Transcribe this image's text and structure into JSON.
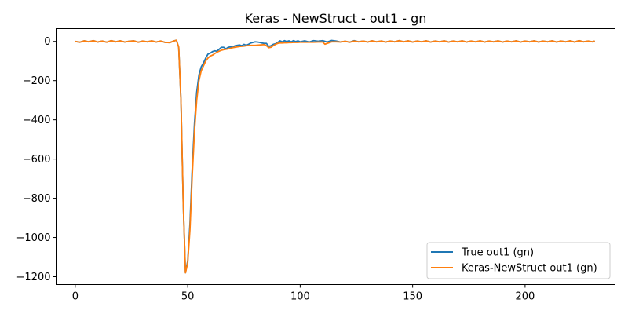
{
  "chart_data": {
    "type": "line",
    "title": "Keras - NewStruct - out1 - gn",
    "xlabel": "",
    "ylabel": "",
    "xlim": [
      -8.5,
      240
    ],
    "ylim": [
      -1240,
      65
    ],
    "xticks": [
      0,
      50,
      100,
      150,
      200
    ],
    "yticks": [
      0,
      -200,
      -400,
      -600,
      -800,
      -1000,
      -1200
    ],
    "xtick_labels": [
      "0",
      "50",
      "100",
      "150",
      "200"
    ],
    "ytick_labels": [
      "0",
      "−200",
      "−400",
      "−600",
      "−800",
      "−1000",
      "−1200"
    ],
    "grid": false,
    "legend_position": "lower-right",
    "series": [
      {
        "name": "True out1 (gn)",
        "color": "#1f77b4",
        "points": [
          [
            0,
            0
          ],
          [
            2,
            -4
          ],
          [
            4,
            3
          ],
          [
            6,
            -2
          ],
          [
            8,
            4
          ],
          [
            10,
            -3
          ],
          [
            12,
            2
          ],
          [
            14,
            -4
          ],
          [
            16,
            4
          ],
          [
            18,
            -2
          ],
          [
            20,
            3
          ],
          [
            22,
            -3
          ],
          [
            24,
            1
          ],
          [
            26,
            3
          ],
          [
            28,
            -4
          ],
          [
            30,
            2
          ],
          [
            32,
            -2
          ],
          [
            34,
            3
          ],
          [
            36,
            -3
          ],
          [
            38,
            2
          ],
          [
            40,
            -5
          ],
          [
            42,
            -6
          ],
          [
            44,
            3
          ],
          [
            45,
            6
          ],
          [
            46,
            -30
          ],
          [
            47,
            -300
          ],
          [
            48,
            -820
          ],
          [
            49,
            -1180
          ],
          [
            50,
            -1120
          ],
          [
            51,
            -930
          ],
          [
            52,
            -650
          ],
          [
            53,
            -420
          ],
          [
            54,
            -260
          ],
          [
            55,
            -170
          ],
          [
            56,
            -130
          ],
          [
            57,
            -110
          ],
          [
            58,
            -85
          ],
          [
            59,
            -65
          ],
          [
            60,
            -60
          ],
          [
            61,
            -52
          ],
          [
            62,
            -48
          ],
          [
            63,
            -50
          ],
          [
            64,
            -40
          ],
          [
            65,
            -30
          ],
          [
            66,
            -30
          ],
          [
            67,
            -38
          ],
          [
            68,
            -30
          ],
          [
            69,
            -28
          ],
          [
            70,
            -30
          ],
          [
            71,
            -22
          ],
          [
            72,
            -20
          ],
          [
            73,
            -18
          ],
          [
            74,
            -22
          ],
          [
            75,
            -15
          ],
          [
            76,
            -20
          ],
          [
            77,
            -15
          ],
          [
            78,
            -8
          ],
          [
            79,
            -5
          ],
          [
            80,
            -2
          ],
          [
            81,
            -3
          ],
          [
            82,
            -5
          ],
          [
            83,
            -8
          ],
          [
            84,
            -10
          ],
          [
            85,
            -10
          ],
          [
            86,
            -25
          ],
          [
            87,
            -22
          ],
          [
            88,
            -15
          ],
          [
            89,
            -12
          ],
          [
            90,
            -5
          ],
          [
            91,
            3
          ],
          [
            92,
            -2
          ],
          [
            93,
            4
          ],
          [
            94,
            -1
          ],
          [
            95,
            3
          ],
          [
            96,
            -2
          ],
          [
            97,
            4
          ],
          [
            98,
            -1
          ],
          [
            99,
            3
          ],
          [
            100,
            -2
          ],
          [
            102,
            3
          ],
          [
            104,
            -3
          ],
          [
            106,
            4
          ],
          [
            108,
            1
          ],
          [
            110,
            4
          ],
          [
            112,
            -3
          ],
          [
            114,
            5
          ],
          [
            116,
            2
          ],
          [
            118,
            -3
          ],
          [
            120,
            1
          ],
          [
            122,
            -4
          ],
          [
            124,
            4
          ],
          [
            126,
            -2
          ],
          [
            128,
            2
          ],
          [
            130,
            -3
          ],
          [
            132,
            3
          ],
          [
            134,
            -2
          ],
          [
            136,
            2
          ],
          [
            138,
            -3
          ],
          [
            140,
            2
          ],
          [
            142,
            -2
          ],
          [
            144,
            4
          ],
          [
            146,
            -2
          ],
          [
            148,
            3
          ],
          [
            150,
            -3
          ],
          [
            152,
            2
          ],
          [
            154,
            -2
          ],
          [
            156,
            3
          ],
          [
            158,
            -3
          ],
          [
            160,
            2
          ],
          [
            162,
            -2
          ],
          [
            164,
            3
          ],
          [
            166,
            -3
          ],
          [
            168,
            2
          ],
          [
            170,
            -2
          ],
          [
            172,
            3
          ],
          [
            174,
            -3
          ],
          [
            176,
            2
          ],
          [
            178,
            -2
          ],
          [
            180,
            3
          ],
          [
            182,
            -3
          ],
          [
            184,
            2
          ],
          [
            186,
            -2
          ],
          [
            188,
            3
          ],
          [
            190,
            -3
          ],
          [
            192,
            2
          ],
          [
            194,
            -2
          ],
          [
            196,
            3
          ],
          [
            198,
            -3
          ],
          [
            200,
            2
          ],
          [
            202,
            -2
          ],
          [
            204,
            3
          ],
          [
            206,
            -3
          ],
          [
            208,
            2
          ],
          [
            210,
            -2
          ],
          [
            212,
            3
          ],
          [
            214,
            -3
          ],
          [
            216,
            2
          ],
          [
            218,
            -2
          ],
          [
            220,
            3
          ],
          [
            222,
            -3
          ],
          [
            224,
            4
          ],
          [
            226,
            -2
          ],
          [
            228,
            2
          ],
          [
            230,
            -2
          ],
          [
            231,
            2
          ]
        ]
      },
      {
        "name": "Keras-NewStruct out1 (gn)",
        "color": "#ff7f0e",
        "points": [
          [
            0,
            0
          ],
          [
            2,
            -4
          ],
          [
            4,
            3
          ],
          [
            6,
            -2
          ],
          [
            8,
            4
          ],
          [
            10,
            -3
          ],
          [
            12,
            2
          ],
          [
            14,
            -4
          ],
          [
            16,
            4
          ],
          [
            18,
            -2
          ],
          [
            20,
            3
          ],
          [
            22,
            -3
          ],
          [
            24,
            1
          ],
          [
            26,
            3
          ],
          [
            28,
            -4
          ],
          [
            30,
            2
          ],
          [
            32,
            -2
          ],
          [
            34,
            3
          ],
          [
            36,
            -3
          ],
          [
            38,
            2
          ],
          [
            40,
            -5
          ],
          [
            42,
            -6
          ],
          [
            44,
            3
          ],
          [
            45,
            6
          ],
          [
            46,
            -30
          ],
          [
            47,
            -300
          ],
          [
            48,
            -820
          ],
          [
            49,
            -1180
          ],
          [
            50,
            -1130
          ],
          [
            51,
            -960
          ],
          [
            52,
            -690
          ],
          [
            53,
            -460
          ],
          [
            54,
            -300
          ],
          [
            55,
            -200
          ],
          [
            56,
            -150
          ],
          [
            57,
            -125
          ],
          [
            58,
            -100
          ],
          [
            59,
            -85
          ],
          [
            60,
            -75
          ],
          [
            61,
            -70
          ],
          [
            62,
            -62
          ],
          [
            63,
            -55
          ],
          [
            64,
            -50
          ],
          [
            65,
            -45
          ],
          [
            66,
            -42
          ],
          [
            67,
            -40
          ],
          [
            68,
            -38
          ],
          [
            69,
            -35
          ],
          [
            70,
            -32
          ],
          [
            71,
            -30
          ],
          [
            72,
            -28
          ],
          [
            73,
            -26
          ],
          [
            74,
            -25
          ],
          [
            75,
            -24
          ],
          [
            76,
            -22
          ],
          [
            77,
            -21
          ],
          [
            78,
            -20
          ],
          [
            79,
            -20
          ],
          [
            80,
            -20
          ],
          [
            81,
            -19
          ],
          [
            82,
            -18
          ],
          [
            83,
            -17
          ],
          [
            84,
            -16
          ],
          [
            85,
            -22
          ],
          [
            86,
            -32
          ],
          [
            87,
            -30
          ],
          [
            88,
            -22
          ],
          [
            89,
            -15
          ],
          [
            90,
            -10
          ],
          [
            91,
            -8
          ],
          [
            92,
            -8
          ],
          [
            93,
            -7
          ],
          [
            94,
            -7
          ],
          [
            95,
            -6
          ],
          [
            96,
            -6
          ],
          [
            97,
            -5
          ],
          [
            98,
            -5
          ],
          [
            99,
            -5
          ],
          [
            100,
            -4
          ],
          [
            102,
            -4
          ],
          [
            104,
            -4
          ],
          [
            106,
            -4
          ],
          [
            108,
            -3
          ],
          [
            110,
            -3
          ],
          [
            111,
            -14
          ],
          [
            112,
            -10
          ],
          [
            114,
            -2
          ],
          [
            116,
            -2
          ],
          [
            118,
            -3
          ],
          [
            120,
            1
          ],
          [
            122,
            -4
          ],
          [
            124,
            2
          ],
          [
            126,
            -2
          ],
          [
            128,
            2
          ],
          [
            130,
            -3
          ],
          [
            132,
            3
          ],
          [
            134,
            -2
          ],
          [
            136,
            2
          ],
          [
            138,
            -3
          ],
          [
            140,
            2
          ],
          [
            142,
            -2
          ],
          [
            144,
            4
          ],
          [
            146,
            -2
          ],
          [
            148,
            3
          ],
          [
            150,
            -3
          ],
          [
            152,
            2
          ],
          [
            154,
            -2
          ],
          [
            156,
            3
          ],
          [
            158,
            -3
          ],
          [
            160,
            2
          ],
          [
            162,
            -2
          ],
          [
            164,
            3
          ],
          [
            166,
            -3
          ],
          [
            168,
            2
          ],
          [
            170,
            -2
          ],
          [
            172,
            3
          ],
          [
            174,
            -3
          ],
          [
            176,
            2
          ],
          [
            178,
            -2
          ],
          [
            180,
            3
          ],
          [
            182,
            -3
          ],
          [
            184,
            2
          ],
          [
            186,
            -2
          ],
          [
            188,
            3
          ],
          [
            190,
            -3
          ],
          [
            192,
            2
          ],
          [
            194,
            -2
          ],
          [
            196,
            3
          ],
          [
            198,
            -3
          ],
          [
            200,
            2
          ],
          [
            202,
            -2
          ],
          [
            204,
            3
          ],
          [
            206,
            -3
          ],
          [
            208,
            2
          ],
          [
            210,
            -2
          ],
          [
            212,
            3
          ],
          [
            214,
            -3
          ],
          [
            216,
            2
          ],
          [
            218,
            -2
          ],
          [
            220,
            3
          ],
          [
            222,
            -3
          ],
          [
            224,
            4
          ],
          [
            226,
            -2
          ],
          [
            228,
            2
          ],
          [
            230,
            -2
          ],
          [
            231,
            2
          ]
        ]
      }
    ]
  }
}
